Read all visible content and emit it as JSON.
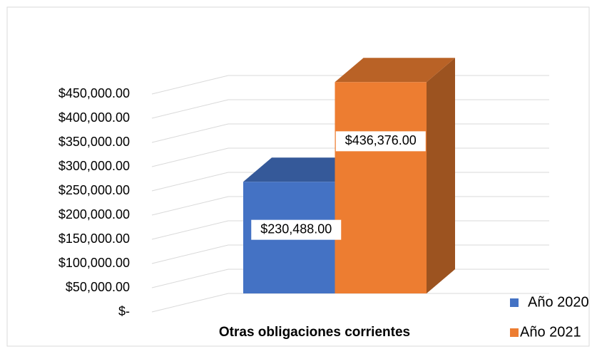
{
  "chart_data": {
    "type": "bar3d",
    "categories": [
      "Otras obligaciones corrientes"
    ],
    "series": [
      {
        "name": "Año 2020",
        "color": "#4472c4",
        "values": [
          230488
        ],
        "value_labels": [
          "$230,488.00"
        ]
      },
      {
        "name": "Año 2021",
        "color": "#ed7d31",
        "values": [
          436376
        ],
        "value_labels": [
          "$436,376.00"
        ]
      }
    ],
    "ylim": [
      0,
      450000
    ],
    "yticks": [
      {
        "value": 0,
        "label": "$-"
      },
      {
        "value": 50000,
        "label": "$50,000.00"
      },
      {
        "value": 100000,
        "label": "$100,000.00"
      },
      {
        "value": 150000,
        "label": "$150,000.00"
      },
      {
        "value": 200000,
        "label": "$200,000.00"
      },
      {
        "value": 250000,
        "label": "$250,000.00"
      },
      {
        "value": 300000,
        "label": "$300,000.00"
      },
      {
        "value": 350000,
        "label": "$350,000.00"
      },
      {
        "value": 400000,
        "label": "$400,000.00"
      },
      {
        "value": 450000,
        "label": "$450,000.00"
      }
    ],
    "grid": true,
    "legend": "bottom-right"
  }
}
